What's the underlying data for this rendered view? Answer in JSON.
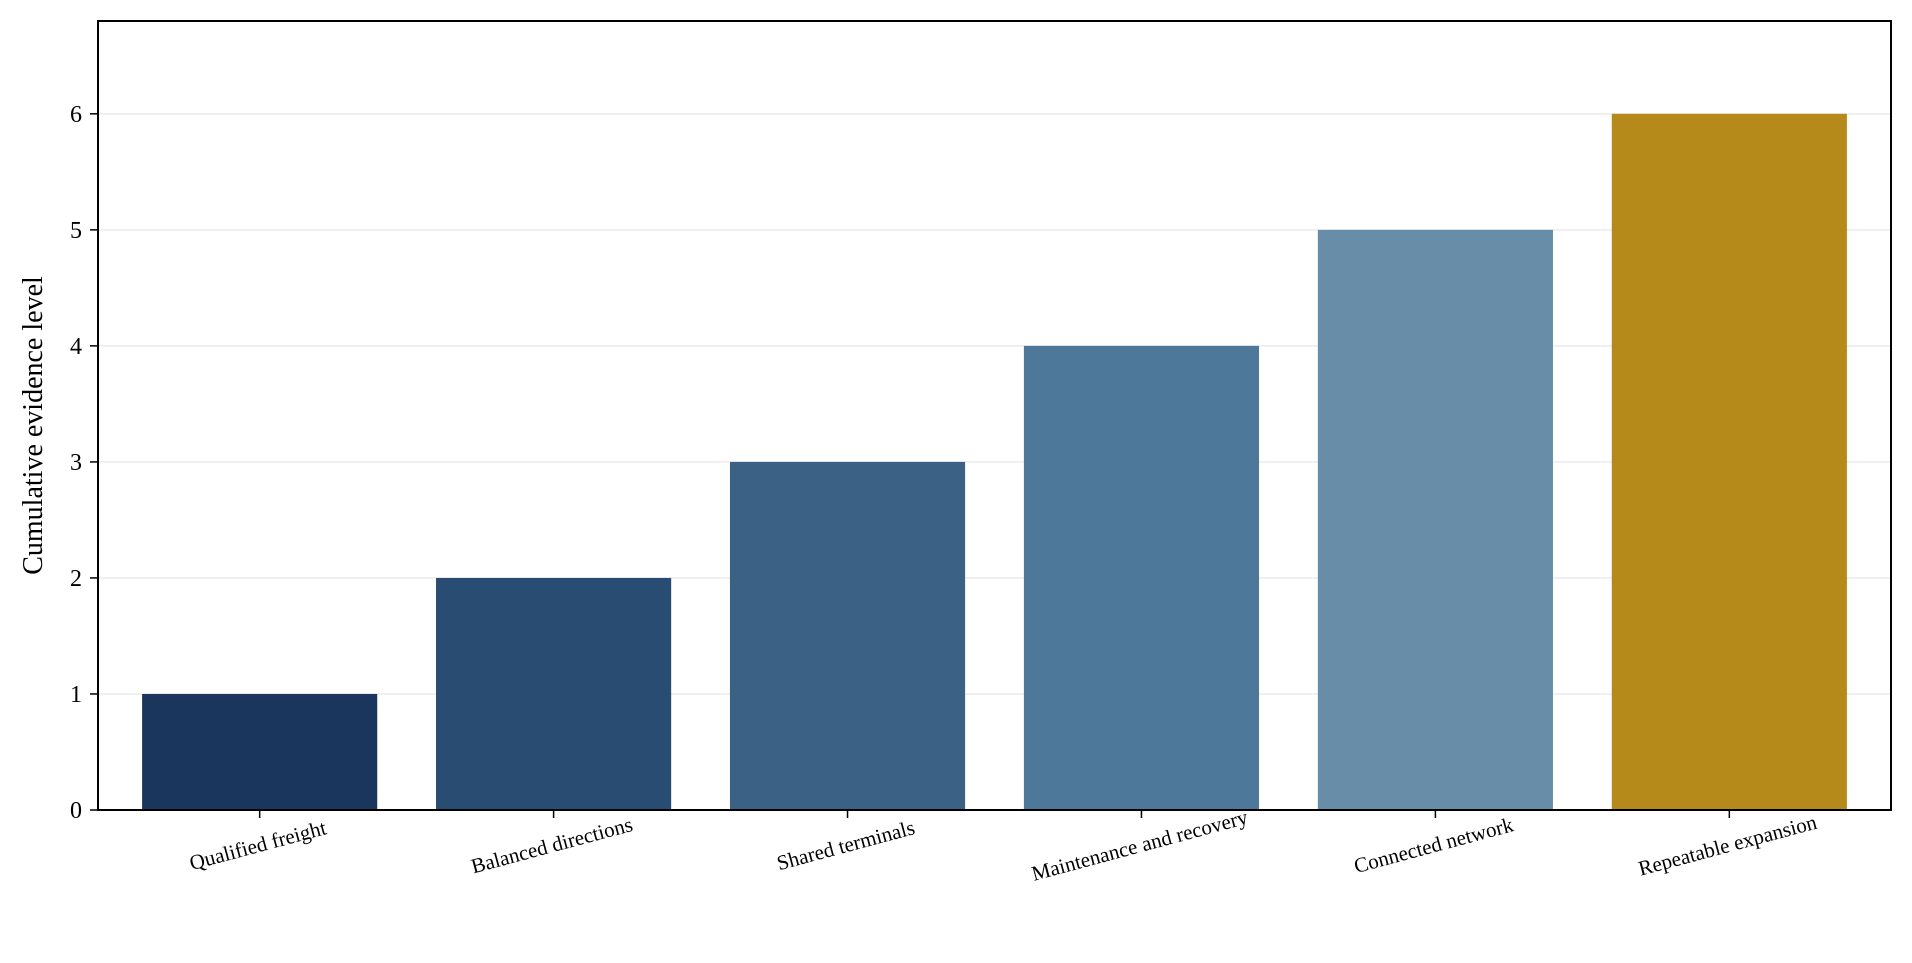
{
  "chart_data": {
    "type": "bar",
    "title": "",
    "xlabel": "",
    "ylabel": "Cumulative evidence level",
    "categories": [
      "Qualified freight",
      "Balanced directions",
      "Shared terminals",
      "Maintenance and recovery",
      "Connected network",
      "Repeatable expansion"
    ],
    "values": [
      1,
      2,
      3,
      4,
      5,
      6
    ],
    "colors": [
      "#1b365d",
      "#294c73",
      "#3b6185",
      "#4d7899",
      "#678da8",
      "#b68a1a"
    ],
    "ylim": [
      0,
      6.8
    ],
    "yticks": [
      0,
      1,
      2,
      3,
      4,
      5,
      6
    ],
    "grid": "horizontal",
    "grid_color": "#ebebeb",
    "legend": "none"
  }
}
